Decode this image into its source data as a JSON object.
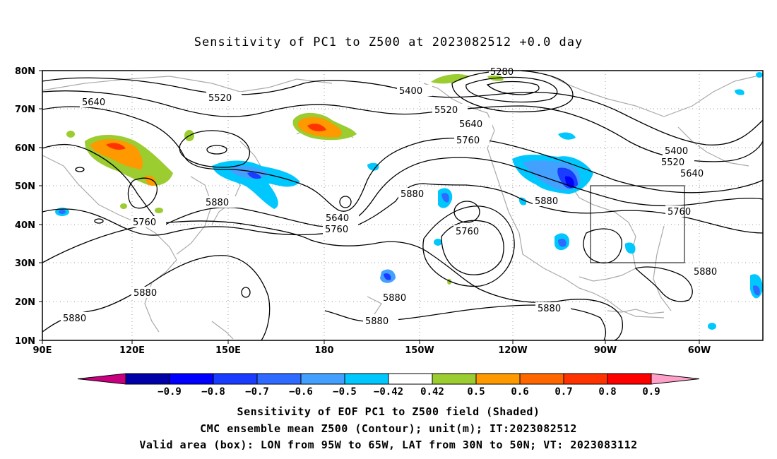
{
  "title": "Sensitivity of PC1 to Z500 at 2023082512 +0.0 day",
  "lat_labels": [
    "80N",
    "70N",
    "60N",
    "50N",
    "40N",
    "30N",
    "20N",
    "10N"
  ],
  "lon_labels": [
    "90E",
    "120E",
    "150E",
    "180",
    "150W",
    "120W",
    "90W",
    "60W"
  ],
  "contour_labels": [
    {
      "text": "5280"
    },
    {
      "text": "5400"
    },
    {
      "text": "5520"
    },
    {
      "text": "5640"
    },
    {
      "text": "5520"
    },
    {
      "text": "5640"
    },
    {
      "text": "5760"
    },
    {
      "text": "5880"
    },
    {
      "text": "5760"
    },
    {
      "text": "5880"
    },
    {
      "text": "5880"
    },
    {
      "text": "5880"
    },
    {
      "text": "5640"
    },
    {
      "text": "5760"
    },
    {
      "text": "5880"
    },
    {
      "text": "5760"
    },
    {
      "text": "5400"
    },
    {
      "text": "5520"
    },
    {
      "text": "5640"
    },
    {
      "text": "5760"
    },
    {
      "text": "5880"
    },
    {
      "text": "5880"
    },
    {
      "text": "5880"
    },
    {
      "text": "5880"
    }
  ],
  "colorbar": {
    "labels": [
      "-0.9",
      "-0.8",
      "-0.7",
      "-0.6",
      "-0.5",
      "-0.42",
      "0.42",
      "0.5",
      "0.6",
      "0.7",
      "0.8",
      "0.9"
    ],
    "colors": [
      "#c8007f",
      "#0000a8",
      "#0000ff",
      "#1a3cff",
      "#2e6aff",
      "#43a0ff",
      "#00c8ff",
      "#ffffff",
      "#9bcc30",
      "#ff9900",
      "#ff6600",
      "#ff3300",
      "#ff0000",
      "#ffa0c8"
    ]
  },
  "captions": {
    "line1": "Sensitivity of EOF PC1 to Z500 field (Shaded)",
    "line2": "CMC ensemble mean Z500 (Contour); unit(m); IT:2023082512",
    "line3": "Valid area (box): LON from 95W to 65W, LAT from 30N to 50N; VT: 2023083112"
  }
}
